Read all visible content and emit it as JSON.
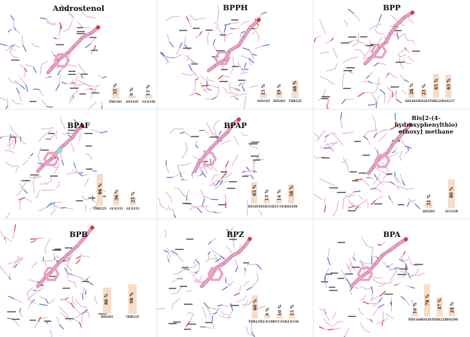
{
  "colors": {
    "bar": "#f9dcc6",
    "ligand": "#e8a3c4",
    "ligand_dark": "#c7789f",
    "residue": "#e3bcd1",
    "nitrogen": "#5a73d6",
    "oxygen": "#d63a3a",
    "sulfur": "#d8c84a",
    "fluorine": "#7fe0e6"
  },
  "panels": [
    {
      "id": "androstenol",
      "title": [
        "Androstenol"
      ],
      "bars": [
        {
          "residue": "PHE361",
          "value": 35,
          "label": "35 %"
        },
        {
          "residue": "ASN165",
          "value": 9,
          "label": "9 %"
        },
        {
          "residue": "GLN338",
          "value": 13,
          "label": "13 %"
        }
      ]
    },
    {
      "id": "bpph",
      "title": [
        "BPPH"
      ],
      "bars": [
        {
          "residue": "ASN165",
          "value": 15,
          "label": "15 %"
        },
        {
          "residue": "HIS203",
          "value": 19,
          "label": "19 %"
        },
        {
          "residue": "THR225",
          "value": 48,
          "label": "48 %"
        }
      ]
    },
    {
      "id": "bpp",
      "title": [
        "BPP"
      ],
      "bars": [
        {
          "residue": "HIS203",
          "value": 26,
          "label": "26 %"
        },
        {
          "residue": "HIS201",
          "value": 23,
          "label": "23 %"
        },
        {
          "residue": "THR225",
          "value": 65,
          "label": "65 %"
        },
        {
          "residue": "ASN337",
          "value": 63,
          "label": "63 %"
        }
      ]
    },
    {
      "id": "bpaf",
      "title": [
        "BPAF"
      ],
      "bars": [
        {
          "residue": "THR225",
          "value": 86,
          "label": "86 %"
        },
        {
          "residue": "GLN333",
          "value": 36,
          "label": "36 %"
        },
        {
          "residue": "GLN333",
          "value": 23,
          "label": "23 %"
        }
      ]
    },
    {
      "id": "bpap",
      "title": [
        "BPAP"
      ],
      "bars": [
        {
          "residue": "HIS203",
          "value": 65,
          "label": "65 %"
        },
        {
          "residue": "SER333",
          "value": 13,
          "label": "13 %"
        },
        {
          "residue": "LEU343",
          "value": 14,
          "label": "14 %"
        },
        {
          "residue": "HIS298",
          "value": 58,
          "label": "58 %"
        }
      ]
    },
    {
      "id": "bis",
      "title": [
        "Bis[2-(4-",
        "hydroxyphenylthio)",
        "ethoxy] methane"
      ],
      "bars": [
        {
          "residue": "HIS203",
          "value": 21,
          "label": "21 %"
        },
        {
          "residue": "GLN338",
          "value": 80,
          "label": "80 %"
        }
      ]
    },
    {
      "id": "bpb",
      "title": [
        "BPB"
      ],
      "bars": [
        {
          "residue": "HIS203",
          "value": 86,
          "label": "86 %"
        },
        {
          "residue": "THR225",
          "value": 98,
          "label": "98 %"
        }
      ]
    },
    {
      "id": "bpz",
      "title": [
        "BPZ"
      ],
      "bars": [
        {
          "residue": "THR225",
          "value": 60,
          "label": "60 %"
        },
        {
          "residue": "GLN339",
          "value": 9,
          "label": "9 %"
        },
        {
          "residue": "LEU343",
          "value": 10,
          "label": "10 %"
        },
        {
          "residue": "GLN338",
          "value": 15,
          "label": "15 %"
        }
      ]
    },
    {
      "id": "bpa",
      "title": [
        "BPA"
      ],
      "bars": [
        {
          "residue": "PHE166",
          "value": 10,
          "label": "10 %"
        },
        {
          "residue": "HIS203",
          "value": 78,
          "label": "78 %"
        },
        {
          "residue": "THR225",
          "value": 47,
          "label": "47 %"
        },
        {
          "residue": "HIS298",
          "value": 24,
          "label": "24 %"
        }
      ]
    }
  ]
}
